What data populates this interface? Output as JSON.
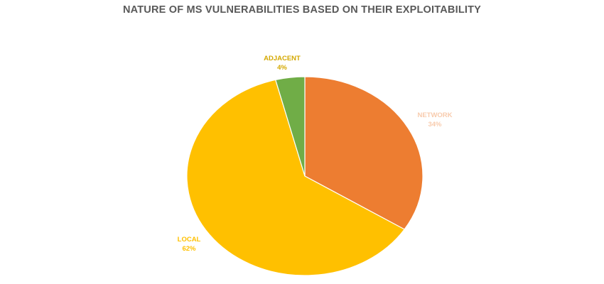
{
  "chart_data": {
    "type": "pie",
    "title": "NATURE OF MS VULNERABILITIES BASED ON THEIR EXPLOITABILITY",
    "categories": [
      "NETWORK",
      "LOCAL",
      "ADJACENT"
    ],
    "values": [
      34,
      62,
      4
    ],
    "value_labels": [
      "34%",
      "62%",
      "4%"
    ],
    "colors": [
      "#ED7D31",
      "#FFC000",
      "#70AD47"
    ],
    "label_colors": [
      "#F8CBAD",
      "#FFC000",
      "#D4A800"
    ],
    "start_angle_deg": 0,
    "direction": "clockwise",
    "legend": "none",
    "data_labels": "outside"
  }
}
